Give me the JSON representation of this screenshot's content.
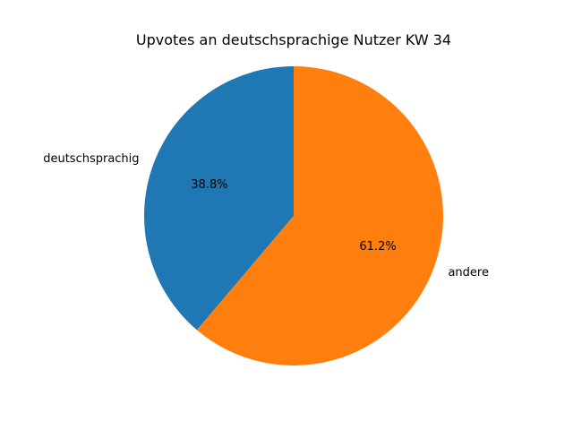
{
  "chart_data": {
    "type": "pie",
    "title": "Upvotes an deutschsprachige Nutzer KW 34",
    "categories": [
      "deutschsprachig",
      "andere"
    ],
    "values": [
      38.8,
      61.2
    ],
    "value_labels": [
      "38.8%",
      "61.2%"
    ],
    "colors": [
      "#1f77b4",
      "#ff7f0e"
    ],
    "start_angle_deg": 90,
    "direction": "counterclockwise",
    "legend": "none"
  }
}
